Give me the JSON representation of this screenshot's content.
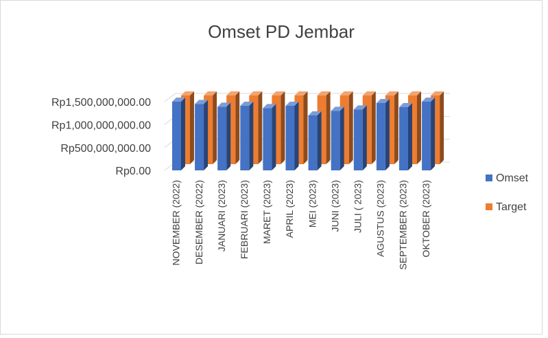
{
  "chart_data": {
    "type": "bar3d",
    "title": "Omset PD Jembar",
    "categories": [
      "NOVEMBER (2022)",
      "DESEMBER (2022)",
      "JANUARI (2023)",
      "FEBRUARI (2023)",
      "MARET (2023)",
      "APRIL (2023)",
      "MEI (2023)",
      "JUNI (2023)",
      "JULI ( 2023)",
      "AGUSTUS (2023)",
      "SEPTEMBER (2023)",
      "OKTOBER (2023)"
    ],
    "series": [
      {
        "name": "Omset",
        "color": "#4472c4",
        "values": [
          1500000000,
          1450000000,
          1390000000,
          1410000000,
          1360000000,
          1410000000,
          1200000000,
          1300000000,
          1330000000,
          1470000000,
          1380000000,
          1500000000
        ]
      },
      {
        "name": "Target",
        "color": "#ed7d31",
        "values": [
          1500000000,
          1500000000,
          1500000000,
          1500000000,
          1500000000,
          1500000000,
          1500000000,
          1500000000,
          1500000000,
          1500000000,
          1500000000,
          1500000000
        ]
      }
    ],
    "ylim": [
      0,
      1500000000
    ],
    "yticks": [
      {
        "value": 0,
        "label": "Rp0.00"
      },
      {
        "value": 500000000,
        "label": "Rp500,000,000.00"
      },
      {
        "value": 1000000000,
        "label": "Rp1,000,000,000.00"
      },
      {
        "value": 1500000000,
        "label": "Rp1,500,000,000.00"
      }
    ],
    "grid": true,
    "legend": "right"
  }
}
